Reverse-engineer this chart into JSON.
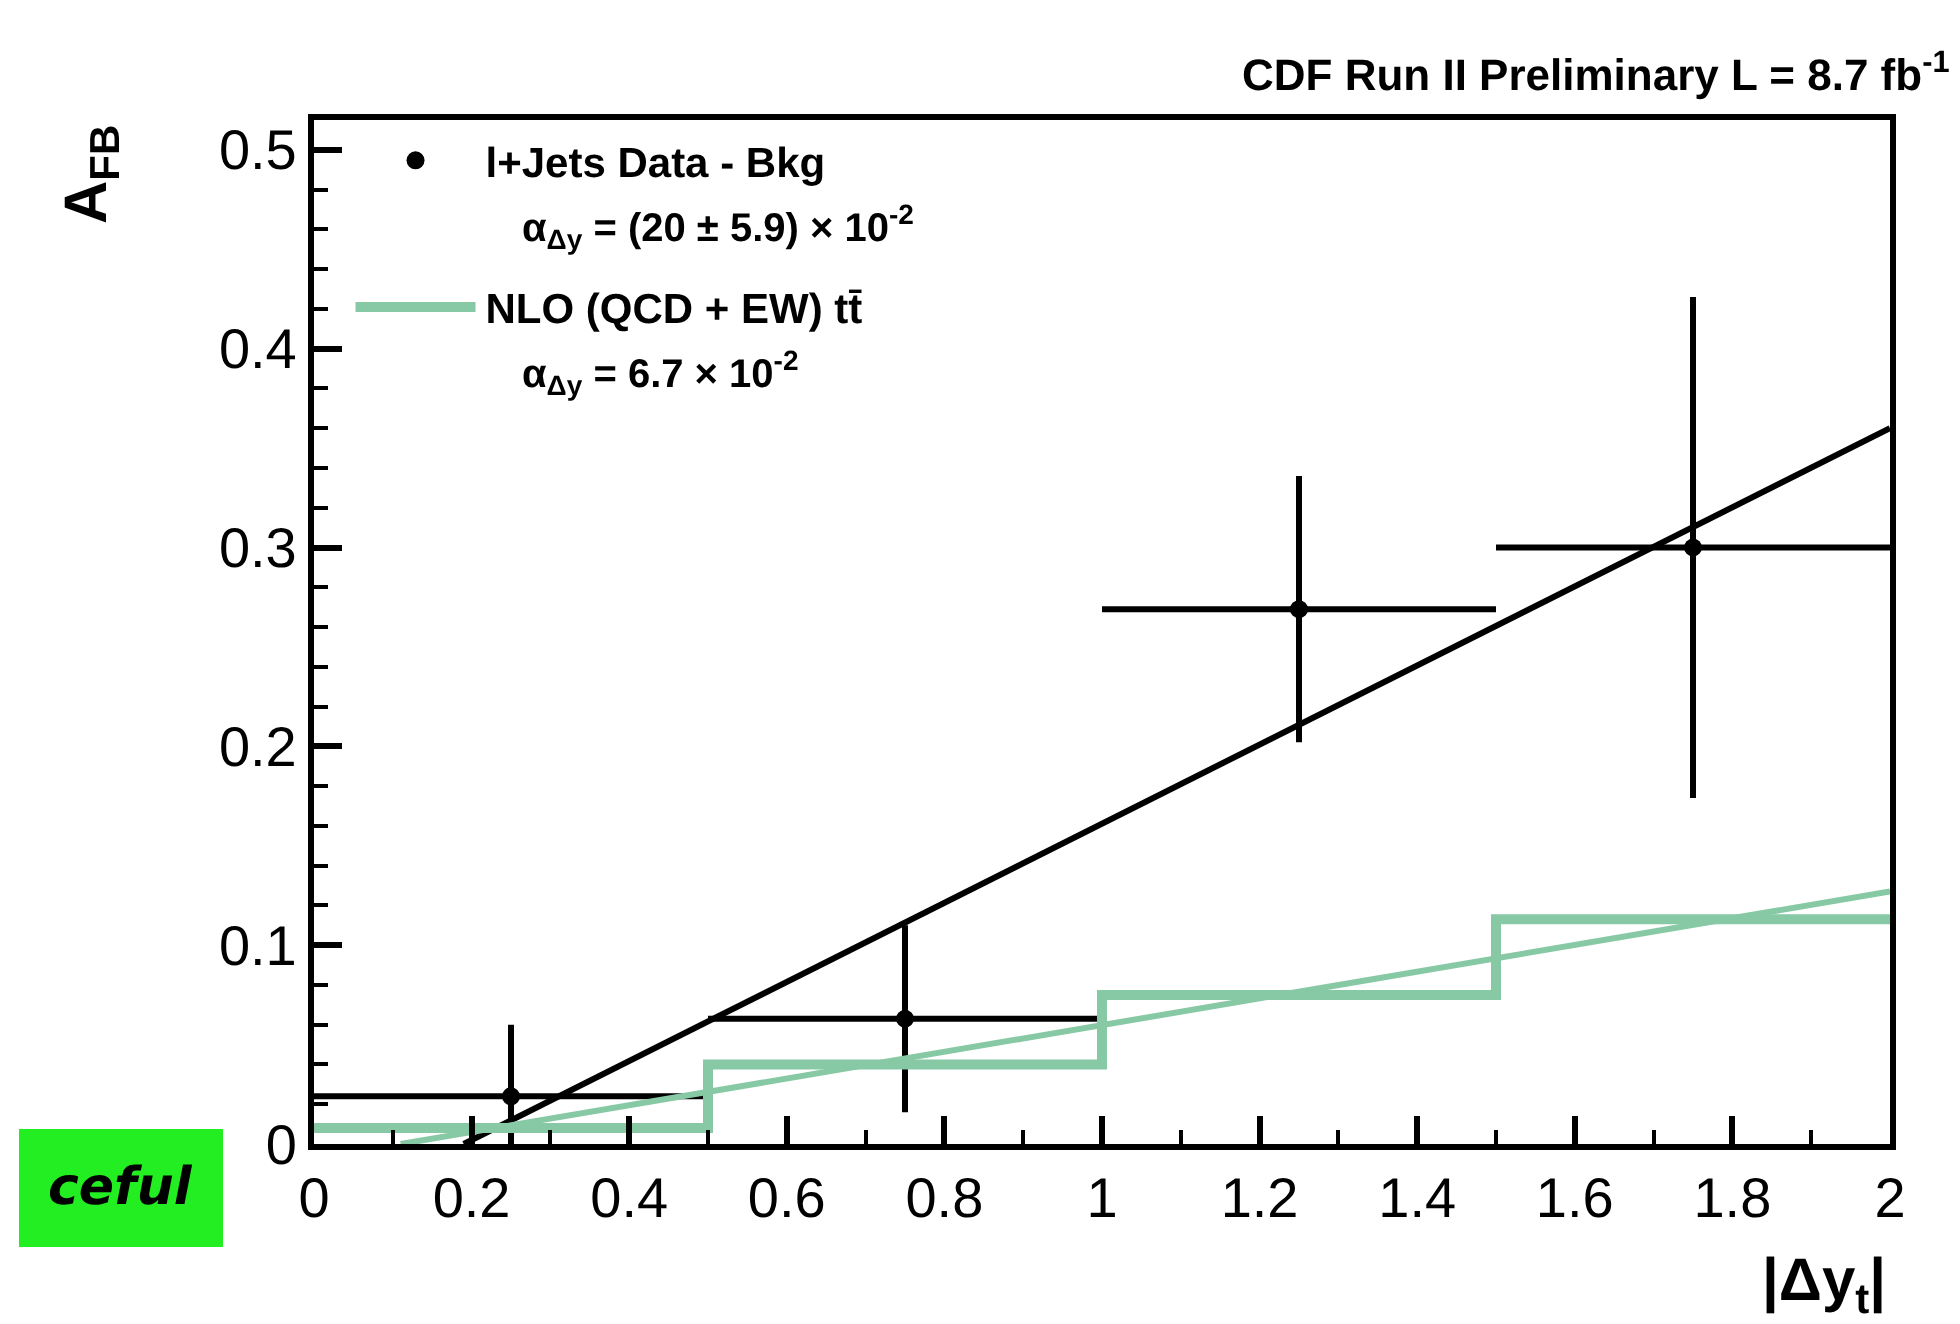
{
  "chart_data": {
    "type": "scatter",
    "title": "CDF Run II Preliminary L = 8.7 fb$^{-1}$",
    "xlabel": "|Δy$_{t}$|",
    "ylabel": "A$_{FB}$",
    "series": [
      {
        "name": "l+Jets Data - Bkg",
        "color": "#000000",
        "marker": "circle",
        "x": [
          0.25,
          0.75,
          1.25,
          1.75
        ],
        "values": [
          0.024,
          0.063,
          0.269,
          0.3
        ],
        "errors": [
          0.036,
          0.047,
          0.067,
          0.126
        ],
        "xerrors": [
          0.25,
          0.25,
          0.25,
          0.25
        ]
      },
      {
        "type": "line",
        "color": "#000000",
        "x": [
          0.19,
          2
        ],
        "values": [
          0,
          0.36
        ]
      },
      {
        "name": "NLO (QCD + EW) tt̄",
        "type": "step",
        "color": "#88c9a5",
        "x": [
          0,
          0.5,
          1,
          1.5,
          2
        ],
        "values": [
          0.008,
          0.04,
          0.075,
          0.113,
          0.113
        ]
      },
      {
        "type": "line",
        "color": "#88c9a5",
        "x": [
          0.11,
          2
        ],
        "values": [
          0,
          0.127
        ]
      }
    ],
    "annotations": [
      "α$_{Δy}$ = (20 ± 5.9) × 10$^{-2}$",
      "α$_{Δy}$ = 6.7 × 10$^{-2}$",
      "ceful"
    ],
    "xlim": [
      0,
      2
    ],
    "ylim": [
      0,
      0.515
    ],
    "xticks": [
      0,
      0.2,
      0.4,
      0.6,
      0.8,
      1,
      1.2,
      1.4,
      1.6,
      1.8,
      2
    ],
    "yticks": [
      0,
      0.1,
      0.2,
      0.3,
      0.4,
      0.5
    ],
    "legend": "top left"
  }
}
